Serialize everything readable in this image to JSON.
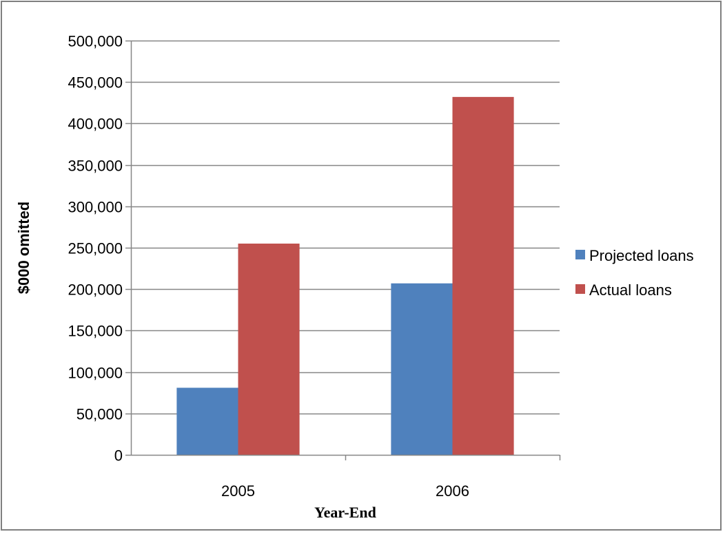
{
  "chart_data": {
    "type": "bar",
    "categories": [
      "2005",
      "2006"
    ],
    "series": [
      {
        "name": "Projected loans",
        "values": [
          81000,
          207000
        ],
        "color": "#4f81bd"
      },
      {
        "name": "Actual loans",
        "values": [
          255000,
          432000
        ],
        "color": "#c0504d"
      }
    ],
    "title": "",
    "xlabel": "Year-End",
    "ylabel": "$000 omitted",
    "ylim": [
      0,
      500000
    ],
    "yticks": [
      0,
      50000,
      100000,
      150000,
      200000,
      250000,
      300000,
      350000,
      400000,
      450000,
      500000
    ],
    "ytick_labels": [
      "0",
      "50,000",
      "100,000",
      "150,000",
      "200,000",
      "250,000",
      "300,000",
      "350,000",
      "400,000",
      "450,000",
      "500,000"
    ],
    "grid": true,
    "legend_position": "right"
  }
}
